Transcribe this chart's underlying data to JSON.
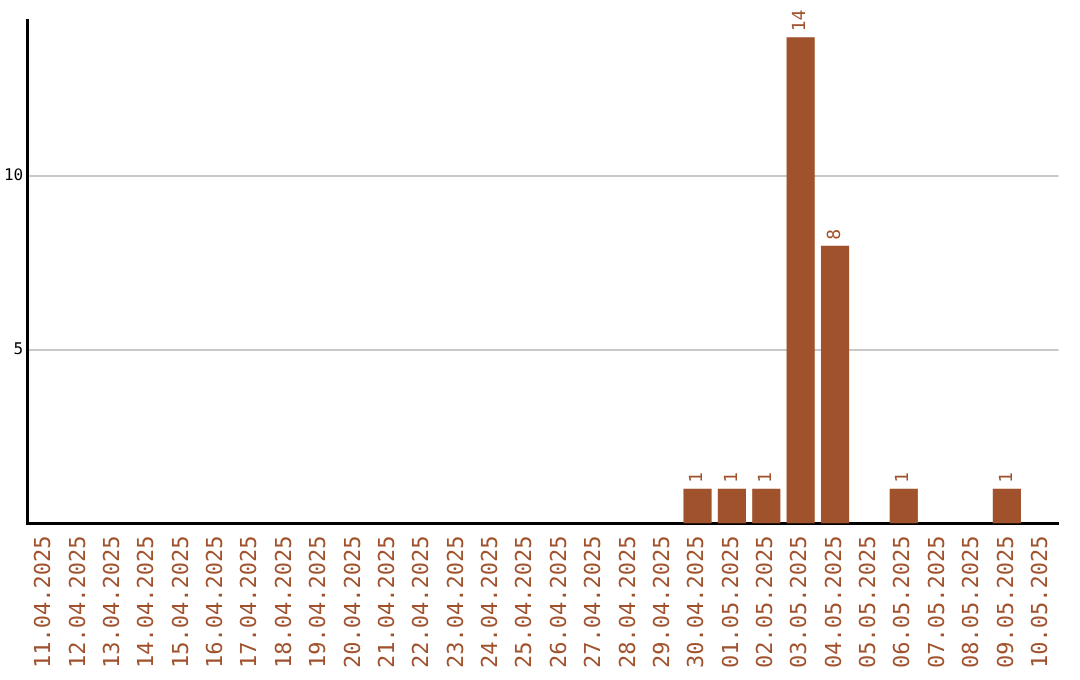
{
  "chart_data": {
    "type": "bar",
    "categories": [
      "11.04.2025",
      "12.04.2025",
      "13.04.2025",
      "14.04.2025",
      "15.04.2025",
      "16.04.2025",
      "17.04.2025",
      "18.04.2025",
      "19.04.2025",
      "20.04.2025",
      "21.04.2025",
      "22.04.2025",
      "23.04.2025",
      "24.04.2025",
      "25.04.2025",
      "26.04.2025",
      "27.04.2025",
      "28.04.2025",
      "29.04.2025",
      "30.04.2025",
      "01.05.2025",
      "02.05.2025",
      "03.05.2025",
      "04.05.2025",
      "05.05.2025",
      "06.05.2025",
      "07.05.2025",
      "08.05.2025",
      "09.05.2025",
      "10.05.2025"
    ],
    "values": [
      0,
      0,
      0,
      0,
      0,
      0,
      0,
      0,
      0,
      0,
      0,
      0,
      0,
      0,
      0,
      0,
      0,
      0,
      0,
      1,
      1,
      1,
      14,
      8,
      0,
      1,
      0,
      0,
      1,
      0
    ],
    "value_labels": [
      null,
      null,
      null,
      null,
      null,
      null,
      null,
      null,
      null,
      null,
      null,
      null,
      null,
      null,
      null,
      null,
      null,
      null,
      null,
      "1",
      "1",
      "1",
      "14",
      "8",
      null,
      "1",
      null,
      null,
      "1",
      null
    ],
    "color": "#a0522d",
    "ylim": [
      0,
      14.5
    ],
    "yticks": [
      5,
      10
    ],
    "grid": "y",
    "legend": false
  }
}
